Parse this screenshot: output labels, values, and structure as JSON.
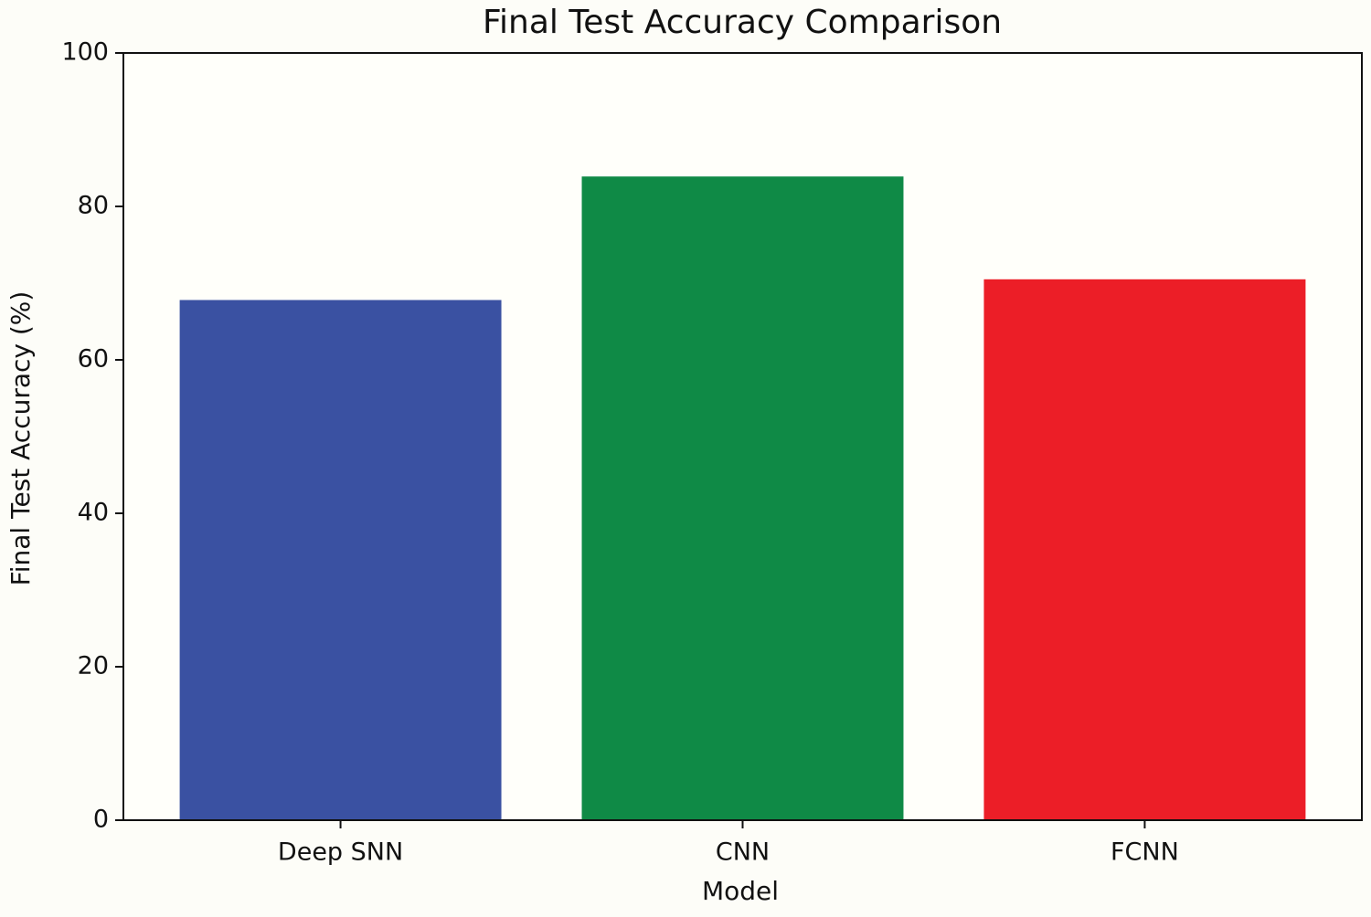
{
  "chart_data": {
    "type": "bar",
    "title": "Final Test Accuracy Comparison",
    "x_label": "Model",
    "y_label": "Final Test Accuracy (%)",
    "categories": [
      "Deep SNN",
      "CNN",
      "FCNN"
    ],
    "values": [
      67.8,
      83.9,
      70.5
    ],
    "colors": [
      "#3a51a2",
      "#0f8a46",
      "#ec1e27"
    ],
    "ylim": [
      0,
      100
    ],
    "yticks": [
      0,
      20,
      40,
      60,
      80,
      100
    ],
    "grid": false
  }
}
